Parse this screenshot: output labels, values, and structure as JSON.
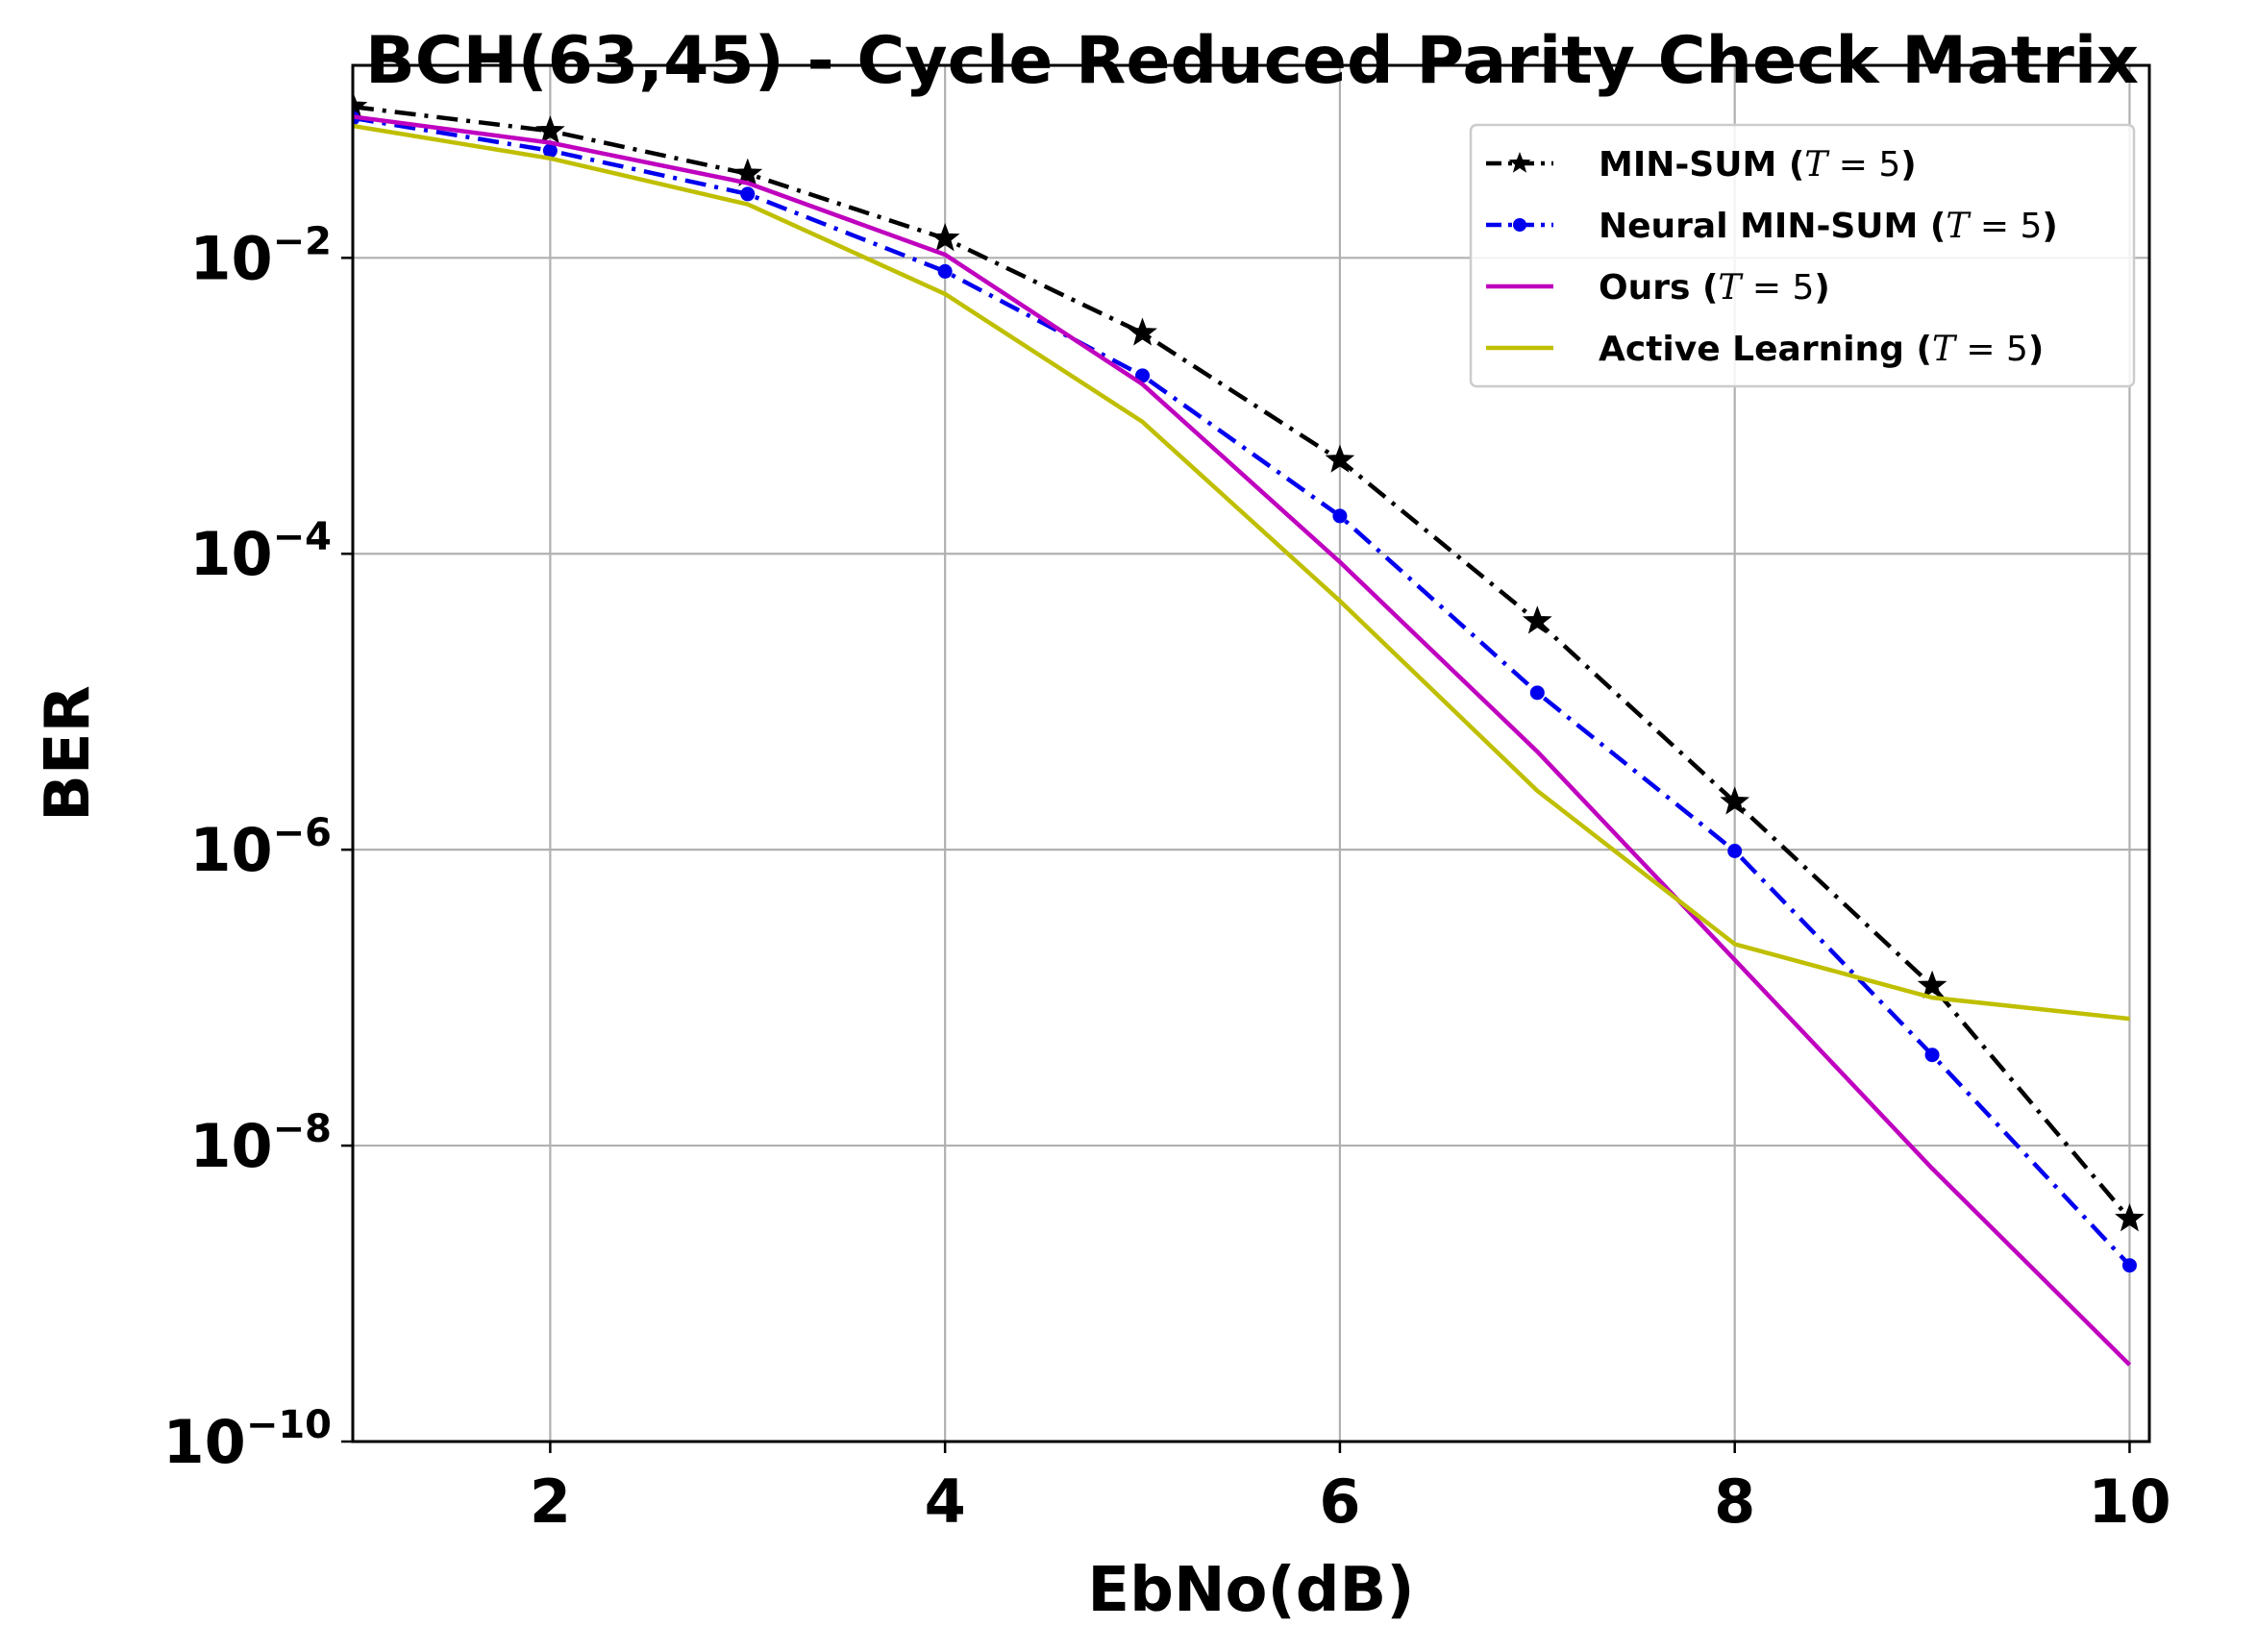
{
  "chart_data": {
    "type": "line",
    "title": "BCH(63,45) - Cycle Reduced Parity Check Matrix",
    "xlabel": "EbNo(dB)",
    "ylabel": "BER",
    "xlim": [
      1,
      10.1
    ],
    "ylim": [
      1e-10,
      0.2
    ],
    "yscale": "log",
    "grid": true,
    "legend_position": "top-right",
    "xticks": [
      2,
      4,
      6,
      8,
      10
    ],
    "xtick_labels": [
      "2",
      "4",
      "6",
      "8",
      "10"
    ],
    "yticks": [
      1e-10,
      1e-08,
      1e-06,
      0.0001,
      0.01
    ],
    "ytick_labels": [
      {
        "base": "10",
        "exp": "−10"
      },
      {
        "base": "10",
        "exp": "−8"
      },
      {
        "base": "10",
        "exp": "−6"
      },
      {
        "base": "10",
        "exp": "−4"
      },
      {
        "base": "10",
        "exp": "−2"
      }
    ],
    "series": [
      {
        "name": "MIN-SUM",
        "name_param": "T",
        "name_value": "5",
        "color": "#000000",
        "dash": "dashdot",
        "marker": "star",
        "x": [
          1,
          2,
          3,
          4,
          5,
          6,
          7,
          8,
          9,
          10
        ],
        "y": [
          0.105,
          0.072,
          0.037,
          0.0135,
          0.0031,
          0.00043,
          3.5e-05,
          2.1e-06,
          1.2e-07,
          3.2e-09
        ]
      },
      {
        "name": "Neural MIN-SUM",
        "name_param": "T",
        "name_value": "5",
        "color": "#0000ee",
        "dash": "dashdot",
        "marker": "dot",
        "x": [
          1,
          2,
          3,
          4,
          5,
          6,
          7,
          8,
          9,
          10
        ],
        "y": [
          0.088,
          0.053,
          0.027,
          0.0081,
          0.0016,
          0.00018,
          1.15e-05,
          9.8e-07,
          4.1e-08,
          1.55e-09
        ]
      },
      {
        "name": "Ours",
        "name_param": "T",
        "name_value": "5",
        "color": "#bf00bf",
        "dash": "solid",
        "marker": "none",
        "x": [
          1,
          2,
          3,
          4,
          5,
          6,
          7,
          8,
          9,
          10
        ],
        "y": [
          0.09,
          0.06,
          0.032,
          0.0105,
          0.0014,
          8.8e-05,
          4.6e-06,
          1.8e-07,
          7e-09,
          3.3e-10
        ]
      },
      {
        "name": "Active Learning",
        "name_param": "T",
        "name_value": "5",
        "color": "#bfbf00",
        "dash": "solid",
        "marker": "none",
        "x": [
          1,
          2,
          3,
          4,
          5,
          6,
          7,
          8,
          9,
          10
        ],
        "y": [
          0.078,
          0.047,
          0.023,
          0.0057,
          0.00078,
          4.8e-05,
          2.5e-06,
          2.3e-07,
          1e-07,
          7.2e-08
        ]
      }
    ]
  }
}
